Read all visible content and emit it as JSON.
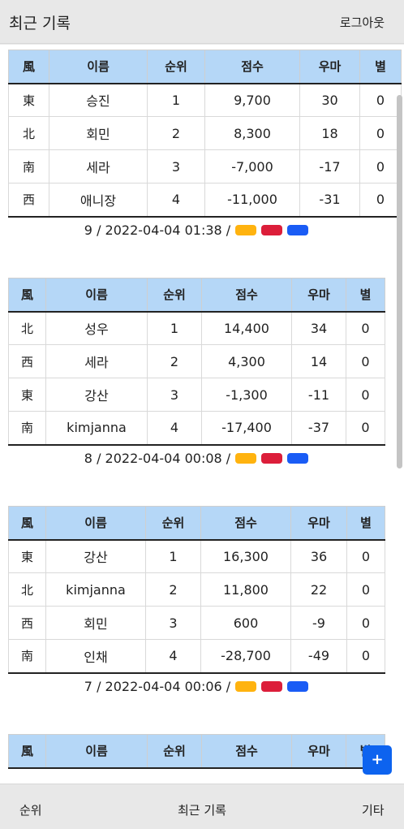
{
  "header": {
    "title": "최근 기록",
    "logout": "로그아웃"
  },
  "columns": [
    "風",
    "이름",
    "순위",
    "점수",
    "우마",
    "별"
  ],
  "games": [
    {
      "rows": [
        {
          "wind": "東",
          "name": "승진",
          "rank": "1",
          "score": "9,700",
          "uma": "30",
          "star": "0"
        },
        {
          "wind": "北",
          "name": "회민",
          "rank": "2",
          "score": "8,300",
          "uma": "18",
          "star": "0"
        },
        {
          "wind": "南",
          "name": "세라",
          "rank": "3",
          "score": "-7,000",
          "uma": "-17",
          "star": "0"
        },
        {
          "wind": "西",
          "name": "애니장",
          "rank": "4",
          "score": "-11,000",
          "uma": "-31",
          "star": "0"
        }
      ],
      "footer": "9 / 2022-04-04 01:38 /"
    },
    {
      "rows": [
        {
          "wind": "北",
          "name": "성우",
          "rank": "1",
          "score": "14,400",
          "uma": "34",
          "star": "0"
        },
        {
          "wind": "西",
          "name": "세라",
          "rank": "2",
          "score": "4,300",
          "uma": "14",
          "star": "0"
        },
        {
          "wind": "東",
          "name": "강산",
          "rank": "3",
          "score": "-1,300",
          "uma": "-11",
          "star": "0"
        },
        {
          "wind": "南",
          "name": "kimjanna",
          "rank": "4",
          "score": "-17,400",
          "uma": "-37",
          "star": "0"
        }
      ],
      "footer": "8 / 2022-04-04 00:08 /"
    },
    {
      "rows": [
        {
          "wind": "東",
          "name": "강산",
          "rank": "1",
          "score": "16,300",
          "uma": "36",
          "star": "0"
        },
        {
          "wind": "北",
          "name": "kimjanna",
          "rank": "2",
          "score": "11,800",
          "uma": "22",
          "star": "0"
        },
        {
          "wind": "西",
          "name": "회민",
          "rank": "3",
          "score": "600",
          "uma": "-9",
          "star": "0"
        },
        {
          "wind": "南",
          "name": "인채",
          "rank": "4",
          "score": "-28,700",
          "uma": "-49",
          "star": "0"
        }
      ],
      "footer": "7 / 2022-04-04 00:06 /"
    },
    {
      "rows": [],
      "footer": ""
    }
  ],
  "tag_colors": [
    "#ffb30f",
    "#dc1e3a",
    "#1a5cf5"
  ],
  "fab": {
    "label": "+"
  },
  "bottom_nav": {
    "rank": "순위",
    "recent": "최근 기록",
    "etc": "기타"
  }
}
